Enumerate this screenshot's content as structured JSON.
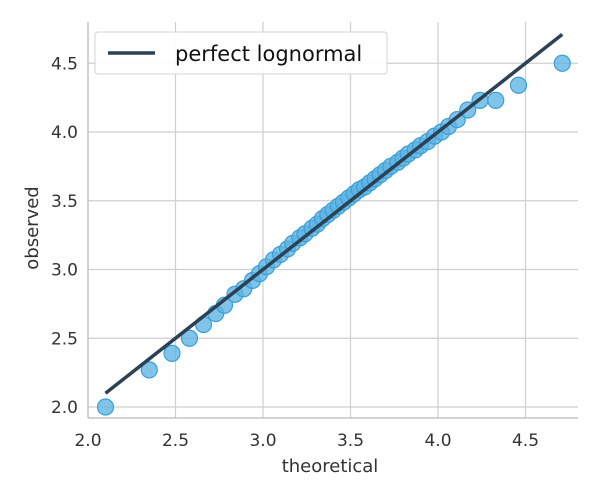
{
  "chart_data": {
    "type": "scatter",
    "title": "",
    "xlabel": "theoretical",
    "ylabel": "observed",
    "xlim": [
      2.0,
      4.8
    ],
    "ylim": [
      1.92,
      4.8
    ],
    "xticks": [
      2.0,
      2.5,
      3.0,
      3.5,
      4.0,
      4.5
    ],
    "yticks": [
      2.0,
      2.5,
      3.0,
      3.5,
      4.0,
      4.5
    ],
    "xtick_labels": [
      "2.0",
      "2.5",
      "3.0",
      "3.5",
      "4.0",
      "4.5"
    ],
    "ytick_labels": [
      "2.0",
      "2.5",
      "3.0",
      "3.5",
      "4.0",
      "4.5"
    ],
    "grid": true,
    "legend": {
      "placement": "top-left",
      "entries": [
        {
          "label": "perfect lognormal",
          "color": "#2c4254",
          "marker": "line"
        }
      ]
    },
    "reference_line": {
      "name": "perfect lognormal",
      "x": [
        2.1,
        4.71
      ],
      "y": [
        2.1,
        4.71
      ],
      "color": "#2c4254"
    },
    "series": [
      {
        "type": "scatter",
        "color": "#5cb3e3",
        "points": [
          [
            2.1,
            2.0
          ],
          [
            2.35,
            2.27
          ],
          [
            2.48,
            2.39
          ],
          [
            2.58,
            2.5
          ],
          [
            2.66,
            2.6
          ],
          [
            2.73,
            2.68
          ],
          [
            2.78,
            2.74
          ],
          [
            2.84,
            2.82
          ],
          [
            2.89,
            2.86
          ],
          [
            2.94,
            2.92
          ],
          [
            2.98,
            2.97
          ],
          [
            3.02,
            3.02
          ],
          [
            3.06,
            3.07
          ],
          [
            3.1,
            3.11
          ],
          [
            3.14,
            3.15
          ],
          [
            3.17,
            3.19
          ],
          [
            3.21,
            3.23
          ],
          [
            3.24,
            3.26
          ],
          [
            3.28,
            3.3
          ],
          [
            3.31,
            3.33
          ],
          [
            3.34,
            3.37
          ],
          [
            3.37,
            3.4
          ],
          [
            3.4,
            3.43
          ],
          [
            3.43,
            3.46
          ],
          [
            3.46,
            3.49
          ],
          [
            3.49,
            3.52
          ],
          [
            3.52,
            3.55
          ],
          [
            3.55,
            3.58
          ],
          [
            3.58,
            3.6
          ],
          [
            3.61,
            3.63
          ],
          [
            3.64,
            3.66
          ],
          [
            3.67,
            3.69
          ],
          [
            3.7,
            3.72
          ],
          [
            3.73,
            3.75
          ],
          [
            3.77,
            3.78
          ],
          [
            3.8,
            3.81
          ],
          [
            3.83,
            3.84
          ],
          [
            3.87,
            3.87
          ],
          [
            3.9,
            3.9
          ],
          [
            3.94,
            3.93
          ],
          [
            3.98,
            3.97
          ],
          [
            4.02,
            4.0
          ],
          [
            4.06,
            4.04
          ],
          [
            4.11,
            4.09
          ],
          [
            4.17,
            4.16
          ],
          [
            4.24,
            4.23
          ],
          [
            4.33,
            4.23
          ],
          [
            4.46,
            4.34
          ],
          [
            4.71,
            4.5
          ]
        ]
      }
    ]
  }
}
